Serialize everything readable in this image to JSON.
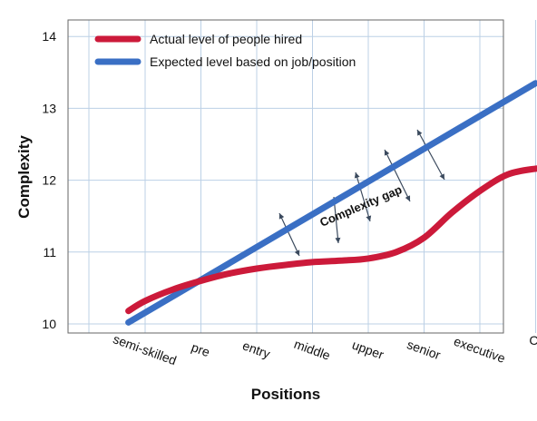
{
  "chart_data": {
    "type": "line",
    "xlabel": "Positions",
    "ylabel": "Complexity",
    "categories": [
      "semi-skilled",
      "pre",
      "entry",
      "middle",
      "upper",
      "senior",
      "executive",
      "CEO"
    ],
    "ylim": [
      10,
      14
    ],
    "yticks": [
      10,
      11,
      12,
      13,
      14
    ],
    "grid": true,
    "legend_position": "top-left",
    "series": [
      {
        "name": "Actual level of people hired",
        "color": "#cc1a3a",
        "x": [
          -0.3,
          0.0,
          0.5,
          1.0,
          1.5,
          2.0,
          2.5,
          3.0,
          3.5,
          4.0,
          4.5,
          5.0,
          5.5,
          6.0,
          6.5,
          7.0,
          7.2
        ],
        "values": [
          10.18,
          10.32,
          10.48,
          10.6,
          10.7,
          10.77,
          10.82,
          10.86,
          10.88,
          10.91,
          11.0,
          11.2,
          11.55,
          11.85,
          12.08,
          12.16,
          12.16
        ]
      },
      {
        "name": "Expected level based on job/position",
        "color": "#3a6fc4",
        "x": [
          -0.3,
          7.0
        ],
        "values": [
          10.02,
          13.35
        ]
      }
    ],
    "annotations": [
      {
        "text": "Complexity gap"
      }
    ]
  }
}
